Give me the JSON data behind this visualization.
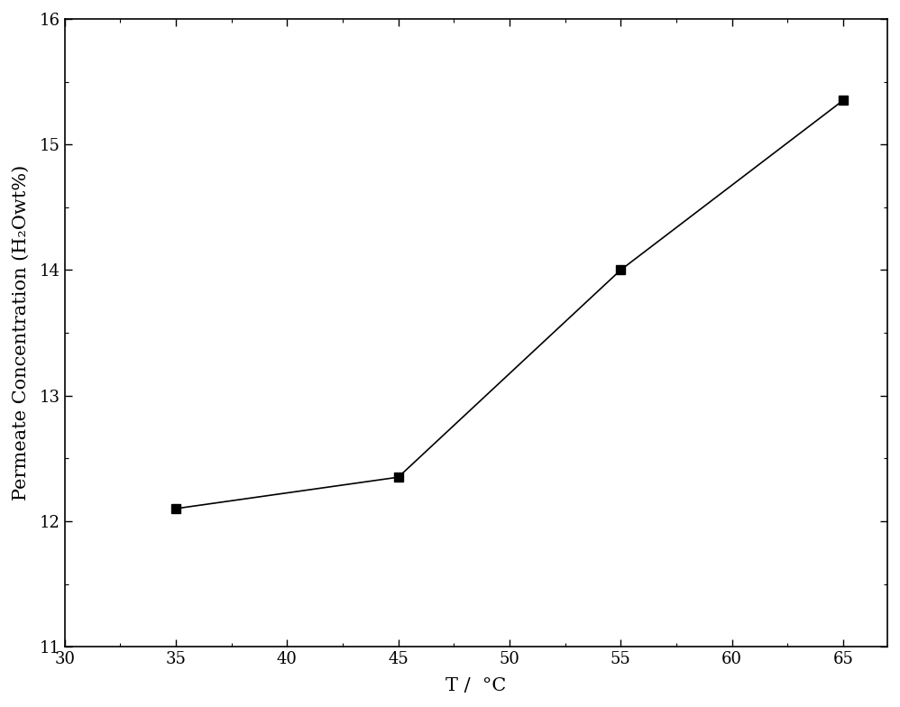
{
  "x": [
    35,
    45,
    55,
    65
  ],
  "y": [
    12.1,
    12.35,
    14.0,
    15.35
  ],
  "xlim": [
    30,
    67
  ],
  "ylim": [
    11,
    16
  ],
  "xticks": [
    30,
    35,
    40,
    45,
    50,
    55,
    60,
    65
  ],
  "yticks": [
    11,
    12,
    13,
    14,
    15,
    16
  ],
  "xlabel": "T /  °C",
  "ylabel": "Permeate Concentration (H₂Owt%)",
  "line_color": "#000000",
  "marker": "s",
  "marker_color": "#000000",
  "marker_size": 7,
  "linewidth": 1.2,
  "background_color": "#ffffff",
  "tick_fontsize": 13,
  "label_fontsize": 15,
  "font_family": "serif"
}
